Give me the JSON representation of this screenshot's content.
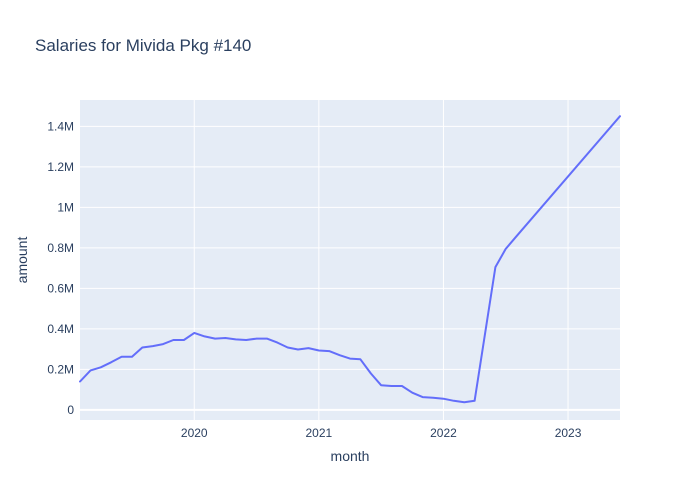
{
  "chart_data": {
    "type": "line",
    "title": "Salaries for Mivida Pkg #140",
    "xlabel": "month",
    "ylabel": "amount",
    "x_range": [
      2019.083,
      2023.417
    ],
    "ylim": [
      -50000,
      1530000
    ],
    "x_ticks": [
      {
        "value": 2020,
        "label": "2020"
      },
      {
        "value": 2021,
        "label": "2021"
      },
      {
        "value": 2022,
        "label": "2022"
      },
      {
        "value": 2023,
        "label": "2023"
      }
    ],
    "y_ticks": [
      {
        "value": 0,
        "label": "0"
      },
      {
        "value": 200000,
        "label": "0.2M"
      },
      {
        "value": 400000,
        "label": "0.4M"
      },
      {
        "value": 600000,
        "label": "0.6M"
      },
      {
        "value": 800000,
        "label": "0.8M"
      },
      {
        "value": 1000000,
        "label": "1M"
      },
      {
        "value": 1200000,
        "label": "1.2M"
      },
      {
        "value": 1400000,
        "label": "1.4M"
      }
    ],
    "series": [
      {
        "name": "amount",
        "color": "#636efa",
        "x": [
          2019.083,
          2019.167,
          2019.25,
          2019.333,
          2019.417,
          2019.5,
          2019.583,
          2019.667,
          2019.75,
          2019.833,
          2019.917,
          2020.0,
          2020.083,
          2020.167,
          2020.25,
          2020.333,
          2020.417,
          2020.5,
          2020.583,
          2020.667,
          2020.75,
          2020.833,
          2020.917,
          2021.0,
          2021.083,
          2021.167,
          2021.25,
          2021.333,
          2021.417,
          2021.5,
          2021.583,
          2021.667,
          2021.75,
          2021.833,
          2021.917,
          2022.0,
          2022.083,
          2022.167,
          2022.25,
          2022.417,
          2022.5,
          2022.583,
          2023.417
        ],
        "values": [
          140000,
          195000,
          210000,
          235000,
          262000,
          262000,
          308000,
          315000,
          325000,
          345000,
          345000,
          380000,
          363000,
          352000,
          355000,
          348000,
          345000,
          352000,
          352000,
          332000,
          308000,
          298000,
          305000,
          293000,
          290000,
          270000,
          253000,
          250000,
          180000,
          122000,
          118000,
          118000,
          85000,
          63000,
          60000,
          55000,
          45000,
          38000,
          45000,
          705000,
          795000,
          855000,
          1450000
        ]
      }
    ]
  }
}
